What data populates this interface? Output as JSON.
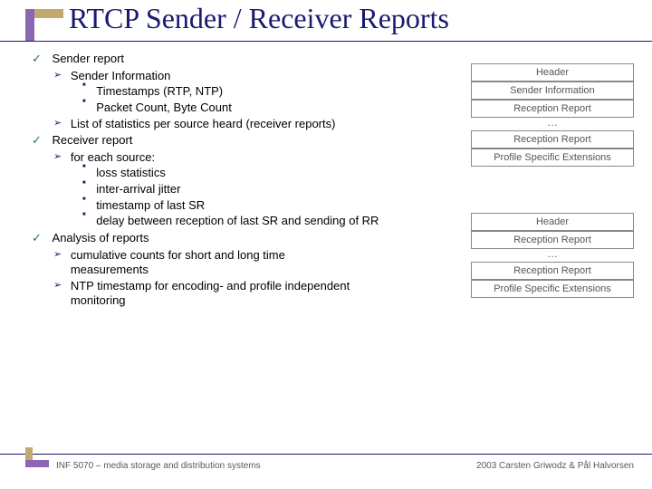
{
  "title": "RTCP Sender / Receiver Reports",
  "colors": {
    "title": "#1a1a6e",
    "rule": "#1a1a6e",
    "check": "#2a7a2a",
    "accent_gold": "#c3a96e",
    "accent_purple": "#8a66b3",
    "diagram_border": "#888888",
    "diagram_text": "#555555",
    "footer_text": "#595959",
    "background": "#ffffff"
  },
  "typography": {
    "title_font": "Times New Roman",
    "title_size_pt": 24,
    "body_font": "Verdana",
    "body_size_pt": 10,
    "diagram_size_pt": 8,
    "footer_size_pt": 8
  },
  "bullets": {
    "l1_sender": "Sender report",
    "l2_sender_info": "Sender Information",
    "l3_timestamps": "Timestamps (RTP, NTP)",
    "l3_counts": "Packet Count, Byte Count",
    "l2_stats": "List of statistics per source heard (receiver reports)",
    "l1_receiver": "Receiver report",
    "l2_foreach": "for each source:",
    "l3_loss": "loss statistics",
    "l3_jitter": "inter-arrival jitter",
    "l3_last_sr": "timestamp of last SR",
    "l3_delay": "delay between reception of last SR and sending of RR",
    "l1_analysis": "Analysis of reports",
    "l2_cumulative": "cumulative counts for short and long time measurements",
    "l2_ntp": "NTP timestamp for encoding- and profile independent monitoring"
  },
  "diagram1": {
    "rows": [
      "Header",
      "Sender Information",
      "Reception Report",
      "…",
      "Reception Report",
      "Profile Specific Extensions"
    ]
  },
  "diagram2": {
    "rows": [
      "Header",
      "Reception Report",
      "…",
      "Reception Report",
      "Profile Specific Extensions"
    ]
  },
  "footer": {
    "left": "INF 5070 – media storage and distribution systems",
    "right": "2003  Carsten Griwodz & Pål Halvorsen"
  }
}
